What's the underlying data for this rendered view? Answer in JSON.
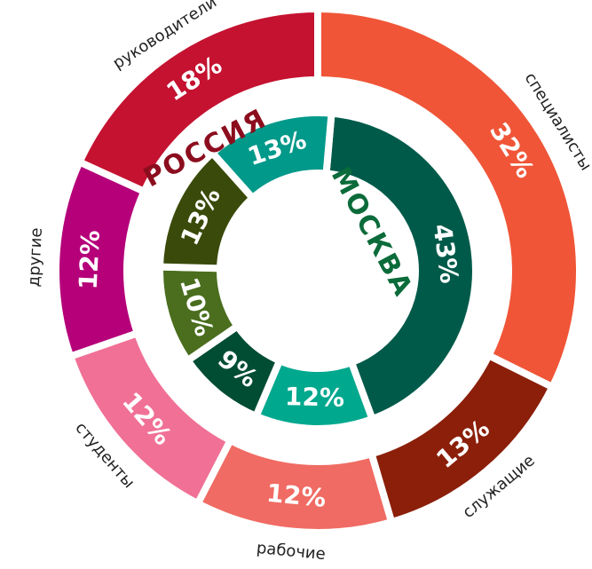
{
  "chart_data": [
    {
      "type": "pie",
      "title": "РОССИЯ",
      "title_color": "#8b0d1e",
      "categories": [
        "специалисты",
        "служащие",
        "рабочие",
        "студенты",
        "другие",
        "руководители"
      ],
      "values": [
        32,
        13,
        12,
        12,
        12,
        18
      ],
      "value_labels": [
        "32%",
        "13%",
        "12%",
        "12%",
        "12%",
        "18%"
      ],
      "colors": [
        "#f05537",
        "#8b1f0a",
        "#f06b63",
        "#f07096",
        "#b5007a",
        "#c41230"
      ]
    },
    {
      "type": "pie",
      "title": "МОСКВА",
      "title_color": "#0b6b3a",
      "categories": [
        null,
        null,
        null,
        null,
        null,
        null
      ],
      "values": [
        43,
        12,
        9,
        10,
        13,
        13
      ],
      "value_labels": [
        "43%",
        "12%",
        "9%",
        "10%",
        "13%",
        "13%"
      ],
      "colors": [
        "#005a4a",
        "#00a88e",
        "#004d33",
        "#4a6e1e",
        "#3a4a0a",
        "#00998a"
      ]
    }
  ]
}
